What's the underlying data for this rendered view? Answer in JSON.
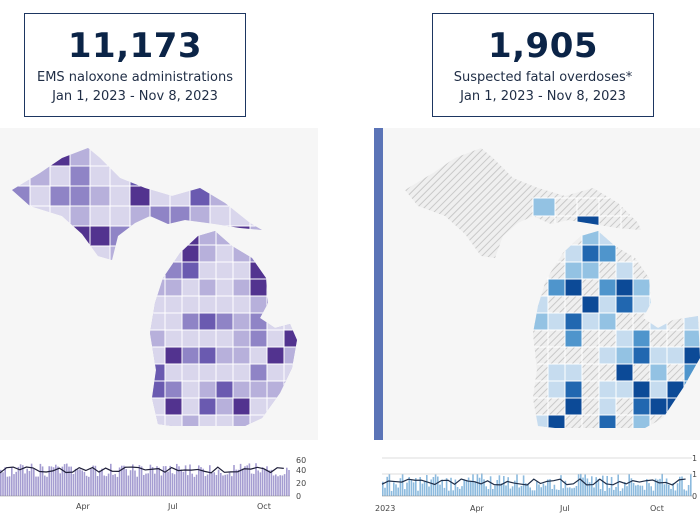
{
  "left_card": {
    "value": "11,173",
    "label": "EMS naloxone administrations",
    "range": "Jan 1, 2023 - Nov 8, 2023"
  },
  "right_card": {
    "value": "1,905",
    "label": "Suspected fatal overdoses*",
    "range": "Jan 1, 2023 - Nov 8, 2023"
  },
  "left_timeline": {
    "y_ticks": [
      "60",
      "40",
      "20",
      "0"
    ],
    "x_ticks": [
      "Apr",
      "Jul",
      "Oct"
    ],
    "accent": "#8f84c6"
  },
  "right_timeline": {
    "y_ticks": [
      "1",
      "1",
      "0"
    ],
    "x_ticks": [
      "2023",
      "Apr",
      "Jul",
      "Oct"
    ],
    "accent": "#6fa9d6"
  },
  "colors": {
    "purple_scale": [
      "#d9d6ec",
      "#b7b0db",
      "#8f84c6",
      "#6a5ab0",
      "#52338f"
    ],
    "blue_scale": [
      "#c6dcef",
      "#93c2e3",
      "#4f95cc",
      "#2167b0",
      "#0c4a97"
    ],
    "hatch": "#d0d0d0"
  }
}
